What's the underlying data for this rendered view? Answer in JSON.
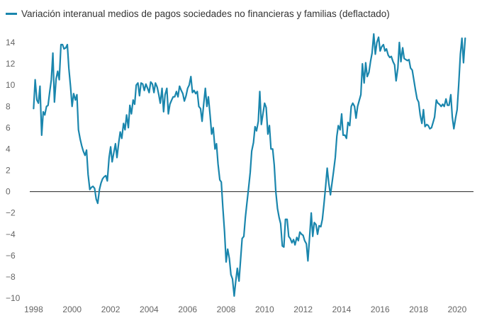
{
  "chart_data": {
    "type": "line",
    "title": "",
    "xlabel": "",
    "ylabel": "",
    "legend_position": "top-left",
    "grid": false,
    "xlim": [
      1997.8,
      2020.85
    ],
    "ylim": [
      -10,
      15
    ],
    "x_ticks": [
      "1998",
      "2000",
      "2002",
      "2004",
      "2006",
      "2008",
      "2010",
      "2012",
      "2014",
      "2016",
      "2018",
      "2020"
    ],
    "y_ticks": [
      "14",
      "12",
      "10",
      "8",
      "6",
      "4",
      "2",
      "0",
      "−2",
      "−4",
      "−6",
      "−8",
      "−10"
    ],
    "series": [
      {
        "name": "Variación interanual medios de pagos sociedades no financieras y familias (deflactado)",
        "color": "#1a86ad",
        "points": [
          [
            1998.0,
            7.8
          ],
          [
            1998.08,
            10.5
          ],
          [
            1998.17,
            8.6
          ],
          [
            1998.25,
            8.3
          ],
          [
            1998.33,
            9.9
          ],
          [
            1998.42,
            5.3
          ],
          [
            1998.5,
            7.5
          ],
          [
            1998.58,
            7.2
          ],
          [
            1998.67,
            8.0
          ],
          [
            1998.75,
            8.1
          ],
          [
            1998.83,
            9.3
          ],
          [
            1998.92,
            10.5
          ],
          [
            1999.0,
            13.0
          ],
          [
            1999.08,
            8.4
          ],
          [
            1999.17,
            10.6
          ],
          [
            1999.25,
            11.3
          ],
          [
            1999.33,
            10.5
          ],
          [
            1999.42,
            13.8
          ],
          [
            1999.5,
            13.8
          ],
          [
            1999.58,
            13.4
          ],
          [
            1999.67,
            13.5
          ],
          [
            1999.75,
            13.8
          ],
          [
            1999.83,
            11.6
          ],
          [
            1999.92,
            9.8
          ],
          [
            2000.0,
            8.0
          ],
          [
            2000.08,
            9.2
          ],
          [
            2000.17,
            8.6
          ],
          [
            2000.25,
            9.1
          ],
          [
            2000.33,
            5.8
          ],
          [
            2000.42,
            4.9
          ],
          [
            2000.5,
            4.3
          ],
          [
            2000.58,
            3.8
          ],
          [
            2000.67,
            3.4
          ],
          [
            2000.75,
            3.9
          ],
          [
            2000.83,
            1.6
          ],
          [
            2000.92,
            0.2
          ],
          [
            2001.0,
            0.4
          ],
          [
            2001.08,
            0.5
          ],
          [
            2001.17,
            0.3
          ],
          [
            2001.25,
            -0.7
          ],
          [
            2001.33,
            -1.1
          ],
          [
            2001.42,
            0.2
          ],
          [
            2001.5,
            0.8
          ],
          [
            2001.58,
            1.2
          ],
          [
            2001.67,
            1.4
          ],
          [
            2001.75,
            1.5
          ],
          [
            2001.83,
            1.0
          ],
          [
            2001.92,
            3.2
          ],
          [
            2002.0,
            4.2
          ],
          [
            2002.08,
            2.8
          ],
          [
            2002.17,
            3.7
          ],
          [
            2002.25,
            4.5
          ],
          [
            2002.33,
            3.2
          ],
          [
            2002.42,
            4.6
          ],
          [
            2002.5,
            5.6
          ],
          [
            2002.58,
            5.0
          ],
          [
            2002.67,
            6.4
          ],
          [
            2002.75,
            5.8
          ],
          [
            2002.83,
            7.2
          ],
          [
            2002.92,
            6.0
          ],
          [
            2003.0,
            8.1
          ],
          [
            2003.08,
            7.3
          ],
          [
            2003.17,
            8.6
          ],
          [
            2003.25,
            8.2
          ],
          [
            2003.33,
            10.0
          ],
          [
            2003.42,
            10.2
          ],
          [
            2003.5,
            9.0
          ],
          [
            2003.58,
            10.2
          ],
          [
            2003.67,
            10.1
          ],
          [
            2003.75,
            9.5
          ],
          [
            2003.83,
            10.1
          ],
          [
            2003.92,
            9.7
          ],
          [
            2004.0,
            9.3
          ],
          [
            2004.08,
            10.3
          ],
          [
            2004.17,
            10.1
          ],
          [
            2004.25,
            9.3
          ],
          [
            2004.33,
            10.2
          ],
          [
            2004.42,
            9.8
          ],
          [
            2004.5,
            9.1
          ],
          [
            2004.58,
            8.3
          ],
          [
            2004.67,
            9.7
          ],
          [
            2004.75,
            7.5
          ],
          [
            2004.83,
            9.1
          ],
          [
            2004.92,
            9.7
          ],
          [
            2005.0,
            7.3
          ],
          [
            2005.08,
            8.2
          ],
          [
            2005.17,
            8.6
          ],
          [
            2005.25,
            8.9
          ],
          [
            2005.33,
            8.9
          ],
          [
            2005.42,
            9.4
          ],
          [
            2005.5,
            8.9
          ],
          [
            2005.58,
            9.9
          ],
          [
            2005.67,
            9.5
          ],
          [
            2005.75,
            9.2
          ],
          [
            2005.83,
            8.5
          ],
          [
            2005.92,
            9.0
          ],
          [
            2006.0,
            9.7
          ],
          [
            2006.08,
            10.0
          ],
          [
            2006.17,
            10.8
          ],
          [
            2006.25,
            9.3
          ],
          [
            2006.33,
            9.5
          ],
          [
            2006.42,
            9.2
          ],
          [
            2006.5,
            9.4
          ],
          [
            2006.58,
            8.0
          ],
          [
            2006.67,
            7.8
          ],
          [
            2006.75,
            6.6
          ],
          [
            2006.83,
            8.1
          ],
          [
            2006.92,
            9.7
          ],
          [
            2007.0,
            8.0
          ],
          [
            2007.08,
            8.9
          ],
          [
            2007.17,
            7.1
          ],
          [
            2007.25,
            5.4
          ],
          [
            2007.33,
            6.0
          ],
          [
            2007.42,
            4.0
          ],
          [
            2007.5,
            4.5
          ],
          [
            2007.58,
            2.6
          ],
          [
            2007.67,
            1.1
          ],
          [
            2007.75,
            0.9
          ],
          [
            2007.83,
            -1.5
          ],
          [
            2007.92,
            -3.8
          ],
          [
            2008.0,
            -6.6
          ],
          [
            2008.08,
            -5.4
          ],
          [
            2008.17,
            -6.3
          ],
          [
            2008.25,
            -7.8
          ],
          [
            2008.33,
            -8.2
          ],
          [
            2008.42,
            -9.8
          ],
          [
            2008.5,
            -8.4
          ],
          [
            2008.58,
            -7.2
          ],
          [
            2008.67,
            -8.4
          ],
          [
            2008.75,
            -6.4
          ],
          [
            2008.83,
            -4.4
          ],
          [
            2008.92,
            -4.2
          ],
          [
            2009.0,
            -2.4
          ],
          [
            2009.08,
            -1.1
          ],
          [
            2009.17,
            0.4
          ],
          [
            2009.25,
            1.8
          ],
          [
            2009.33,
            3.8
          ],
          [
            2009.42,
            4.6
          ],
          [
            2009.5,
            6.1
          ],
          [
            2009.58,
            5.7
          ],
          [
            2009.67,
            6.6
          ],
          [
            2009.75,
            9.4
          ],
          [
            2009.83,
            6.3
          ],
          [
            2009.92,
            7.4
          ],
          [
            2010.0,
            8.3
          ],
          [
            2010.08,
            7.9
          ],
          [
            2010.17,
            5.4
          ],
          [
            2010.25,
            6.2
          ],
          [
            2010.33,
            4.0
          ],
          [
            2010.42,
            4.0
          ],
          [
            2010.5,
            2.5
          ],
          [
            2010.58,
            0.0
          ],
          [
            2010.67,
            -1.6
          ],
          [
            2010.75,
            -2.4
          ],
          [
            2010.83,
            -3.0
          ],
          [
            2010.92,
            -5.1
          ],
          [
            2011.0,
            -5.2
          ],
          [
            2011.08,
            -2.6
          ],
          [
            2011.17,
            -2.6
          ],
          [
            2011.25,
            -4.2
          ],
          [
            2011.33,
            -4.4
          ],
          [
            2011.42,
            -4.8
          ],
          [
            2011.5,
            -4.5
          ],
          [
            2011.58,
            -5.0
          ],
          [
            2011.67,
            -4.3
          ],
          [
            2011.75,
            -4.6
          ],
          [
            2011.83,
            -3.8
          ],
          [
            2011.92,
            -4.0
          ],
          [
            2012.0,
            -4.1
          ],
          [
            2012.08,
            -4.6
          ],
          [
            2012.17,
            -4.9
          ],
          [
            2012.25,
            -6.5
          ],
          [
            2012.33,
            -4.4
          ],
          [
            2012.42,
            -2.0
          ],
          [
            2012.5,
            -4.2
          ],
          [
            2012.58,
            -2.9
          ],
          [
            2012.67,
            -3.1
          ],
          [
            2012.75,
            -4.0
          ],
          [
            2012.83,
            -3.2
          ],
          [
            2012.92,
            -3.3
          ],
          [
            2013.0,
            -2.6
          ],
          [
            2013.08,
            -1.2
          ],
          [
            2013.17,
            0.5
          ],
          [
            2013.25,
            2.2
          ],
          [
            2013.33,
            0.8
          ],
          [
            2013.42,
            -0.3
          ],
          [
            2013.5,
            0.8
          ],
          [
            2013.58,
            1.9
          ],
          [
            2013.67,
            3.2
          ],
          [
            2013.75,
            5.2
          ],
          [
            2013.83,
            6.2
          ],
          [
            2013.92,
            5.8
          ],
          [
            2014.0,
            7.3
          ],
          [
            2014.08,
            5.3
          ],
          [
            2014.17,
            5.3
          ],
          [
            2014.25,
            5.0
          ],
          [
            2014.33,
            6.5
          ],
          [
            2014.42,
            6.2
          ],
          [
            2014.5,
            8.0
          ],
          [
            2014.58,
            8.3
          ],
          [
            2014.67,
            8.0
          ],
          [
            2014.75,
            6.9
          ],
          [
            2014.83,
            8.0
          ],
          [
            2014.92,
            8.6
          ],
          [
            2015.0,
            9.1
          ],
          [
            2015.08,
            12.0
          ],
          [
            2015.17,
            10.2
          ],
          [
            2015.25,
            12.1
          ],
          [
            2015.33,
            10.8
          ],
          [
            2015.42,
            11.2
          ],
          [
            2015.5,
            12.2
          ],
          [
            2015.58,
            13.0
          ],
          [
            2015.67,
            14.8
          ],
          [
            2015.75,
            12.9
          ],
          [
            2015.83,
            14.0
          ],
          [
            2015.92,
            14.5
          ],
          [
            2016.0,
            13.2
          ],
          [
            2016.08,
            13.6
          ],
          [
            2016.17,
            13.8
          ],
          [
            2016.25,
            13.2
          ],
          [
            2016.33,
            13.4
          ],
          [
            2016.42,
            12.8
          ],
          [
            2016.5,
            12.6
          ],
          [
            2016.58,
            12.7
          ],
          [
            2016.67,
            12.2
          ],
          [
            2016.75,
            11.9
          ],
          [
            2016.83,
            10.4
          ],
          [
            2016.92,
            11.6
          ],
          [
            2017.0,
            14.0
          ],
          [
            2017.08,
            12.2
          ],
          [
            2017.17,
            13.5
          ],
          [
            2017.25,
            12.5
          ],
          [
            2017.33,
            12.4
          ],
          [
            2017.42,
            12.3
          ],
          [
            2017.5,
            12.4
          ],
          [
            2017.58,
            11.6
          ],
          [
            2017.67,
            11.4
          ],
          [
            2017.75,
            10.5
          ],
          [
            2017.83,
            9.6
          ],
          [
            2017.92,
            8.7
          ],
          [
            2018.0,
            8.4
          ],
          [
            2018.08,
            7.2
          ],
          [
            2018.17,
            6.4
          ],
          [
            2018.25,
            7.7
          ],
          [
            2018.33,
            6.1
          ],
          [
            2018.42,
            6.3
          ],
          [
            2018.5,
            6.2
          ],
          [
            2018.58,
            5.9
          ],
          [
            2018.67,
            6.0
          ],
          [
            2018.75,
            6.5
          ],
          [
            2018.83,
            7.0
          ],
          [
            2018.92,
            8.6
          ],
          [
            2019.0,
            8.3
          ],
          [
            2019.08,
            8.2
          ],
          [
            2019.17,
            8.0
          ],
          [
            2019.25,
            8.2
          ],
          [
            2019.33,
            8.0
          ],
          [
            2019.42,
            8.7
          ],
          [
            2019.5,
            8.1
          ],
          [
            2019.58,
            8.1
          ],
          [
            2019.67,
            9.1
          ],
          [
            2019.75,
            7.0
          ],
          [
            2019.83,
            5.9
          ],
          [
            2019.92,
            6.9
          ],
          [
            2020.0,
            7.7
          ],
          [
            2020.08,
            10.0
          ],
          [
            2020.17,
            12.9
          ],
          [
            2020.25,
            14.4
          ],
          [
            2020.33,
            12.1
          ],
          [
            2020.42,
            14.4
          ]
        ]
      }
    ]
  }
}
